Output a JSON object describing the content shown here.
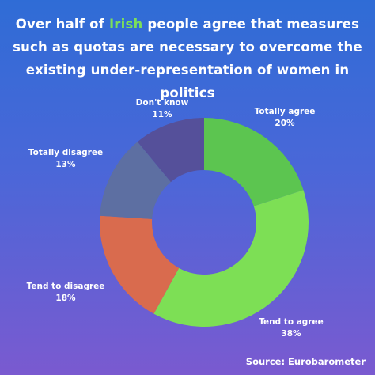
{
  "title": {
    "line1_pre": "Over half of ",
    "line1_highlight": "Irish",
    "line1_post": " people agree that measures",
    "line2": "such as quotas are necessary to overcome the",
    "line3": "existing under-representation of women in politics"
  },
  "colors": {
    "highlight": "#7cdf5a",
    "background_top": "#2f6cd6",
    "background_bottom": "#7a5ad0"
  },
  "chart_data": {
    "type": "pie",
    "donut": true,
    "start_angle_deg": 0,
    "direction": "clockwise",
    "slices": [
      {
        "label": "Totally agree",
        "value": 20,
        "value_label": "20%",
        "color": "#5cc550"
      },
      {
        "label": "Tend to agree",
        "value": 38,
        "value_label": "38%",
        "color": "#7ddf55"
      },
      {
        "label": "Tend to disagree",
        "value": 18,
        "value_label": "18%",
        "color": "#d96b4e"
      },
      {
        "label": "Totally disagree",
        "value": 13,
        "value_label": "13%",
        "color": "#5d6fa2"
      },
      {
        "label": "Don't know",
        "value": 11,
        "value_label": "11%",
        "color": "#55509a"
      }
    ]
  },
  "source": "Source: Eurobarometer"
}
